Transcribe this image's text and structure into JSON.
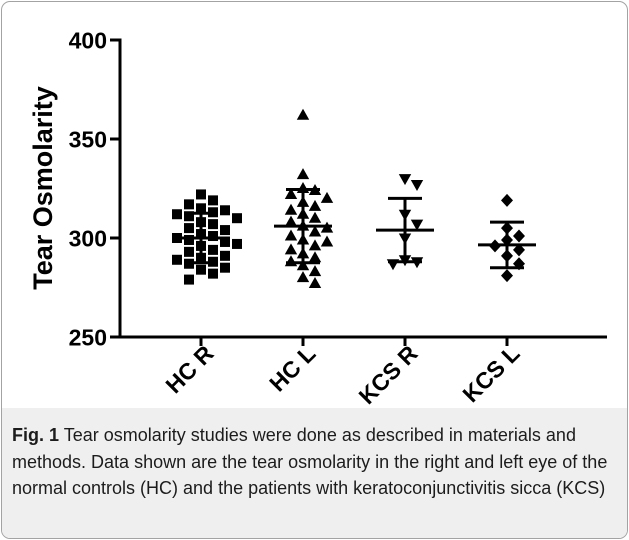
{
  "figure": {
    "caption_label": "Fig. 1",
    "caption_text": "Tear osmolarity studies were done as described in materials and methods. Data shown are the tear osmolarity in the right and left eye of the normal controls (HC) and the patients with keratoconjunctivitis sicca (KCS)"
  },
  "colors": {
    "ink": "#000000",
    "caption_background": "#efefef",
    "frame_border": "#a3a3a3"
  },
  "chart_data": {
    "type": "scatter",
    "ylabel": "Tear Osmolarity",
    "ylim": [
      250,
      400
    ],
    "yticks": [
      400,
      350,
      300,
      250
    ],
    "categories": [
      "HC R",
      "HC L",
      "KCS R",
      "KCS L"
    ],
    "markers": [
      "square",
      "triangle-up",
      "triangle-down",
      "diamond"
    ],
    "points": [
      [
        322,
        319,
        317,
        315,
        314,
        313,
        312,
        311,
        310,
        308,
        307,
        305,
        304,
        302,
        301,
        300,
        299,
        298,
        297,
        296,
        294,
        293,
        291,
        290,
        289,
        288,
        287,
        285,
        284,
        282,
        279
      ],
      [
        362,
        332,
        325,
        324,
        322,
        320,
        318,
        316,
        314,
        312,
        310,
        308,
        306,
        305,
        303,
        301,
        299,
        298,
        296,
        294,
        292,
        290,
        288,
        286,
        283,
        280,
        277
      ],
      [
        330,
        327,
        312,
        307,
        300,
        289,
        288,
        287
      ],
      [
        319,
        305,
        301,
        299,
        296,
        294,
        291,
        287,
        281
      ]
    ],
    "mean": [
      300,
      306,
      304,
      296.5
    ],
    "err_high": [
      312.5,
      324.5,
      320,
      308
    ],
    "err_low": [
      287.5,
      287.5,
      288,
      285
    ],
    "grid": false
  }
}
